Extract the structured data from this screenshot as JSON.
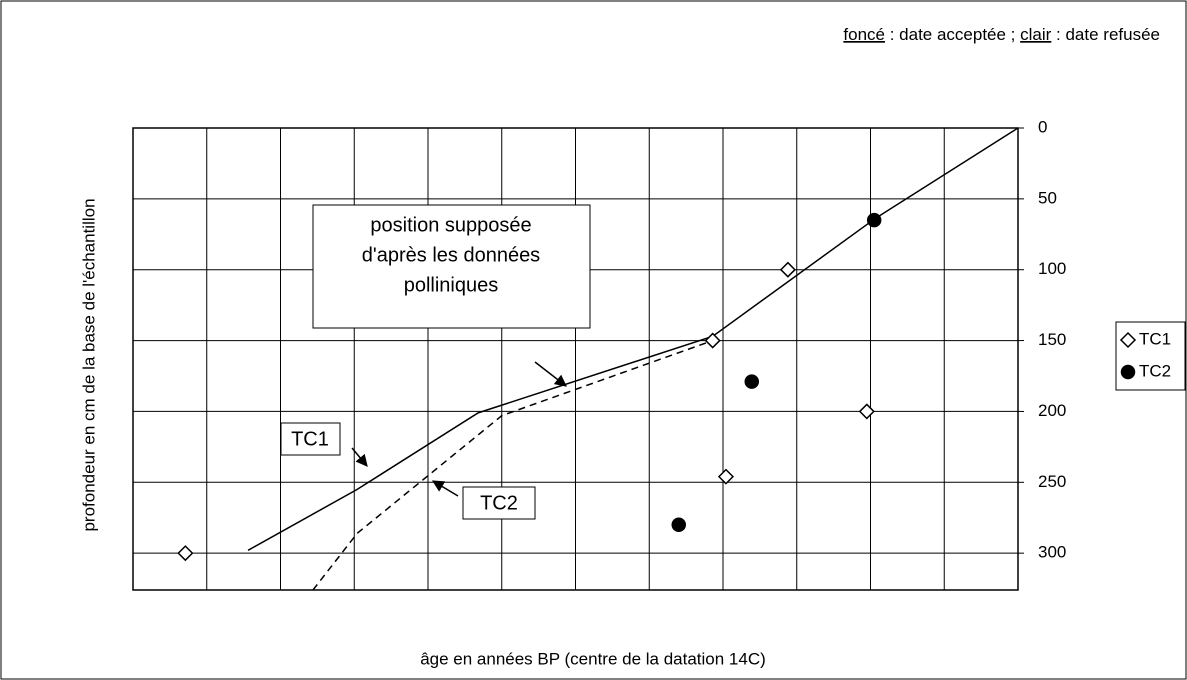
{
  "chart_data": {
    "type": "scatter",
    "note": [
      {
        "text": "foncé",
        "underline": true
      },
      {
        "text": " : date acceptée ; "
      },
      {
        "text": "clair",
        "underline": true
      },
      {
        "text": " : date refusée"
      }
    ],
    "x_label": "âge en années BP (centre de la datation 14C)",
    "y_label": "profondeur en cm de la base de l'échantillon",
    "annotation": [
      "position supposée",
      "d'après les données",
      "polliniques"
    ],
    "xlim": [
      0,
      12
    ],
    "xticks": [
      0,
      1,
      2,
      3,
      4,
      5,
      6,
      7,
      8,
      9,
      10,
      11,
      12
    ],
    "ylim": [
      0,
      326
    ],
    "yticks": [
      0,
      50,
      100,
      150,
      200,
      250,
      300
    ],
    "y_reversed": true,
    "y_axis_side": "right",
    "grid": true,
    "legend": "right",
    "series": [
      {
        "name": "TC1",
        "color": "#000000",
        "marker": "diamond",
        "filled": false,
        "x": [
          0.71,
          7.86,
          8.04,
          8.88,
          9.95
        ],
        "values": [
          300,
          150,
          246,
          100,
          200
        ]
      },
      {
        "name": "TC2",
        "color": "#000000",
        "marker": "circle",
        "filled": true,
        "x": [
          7.4,
          8.39,
          10.05
        ],
        "values": [
          280,
          179,
          65
        ]
      }
    ],
    "curves": [
      {
        "name": "TC1",
        "color": "#000000",
        "dashed": false,
        "x": [
          1.56,
          3.04,
          4.68,
          7.86,
          10.06,
          12
        ],
        "values": [
          298,
          255,
          201,
          147,
          64,
          0
        ]
      },
      {
        "name": "TC2",
        "color": "#000000",
        "dashed": true,
        "x": [
          2.44,
          3.04,
          5.0,
          7.86
        ],
        "values": [
          326,
          286,
          203,
          150
        ]
      }
    ]
  }
}
